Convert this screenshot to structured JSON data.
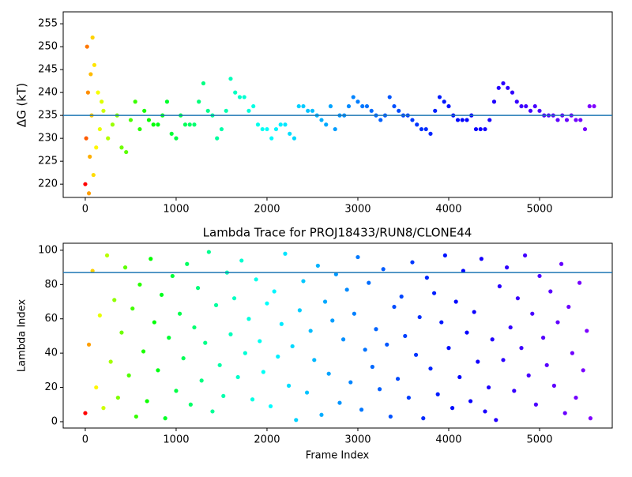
{
  "chart_data": [
    {
      "type": "scatter",
      "ylabel": "ΔG (kT)",
      "colormap": "rainbow",
      "x": [
        0,
        10,
        20,
        30,
        40,
        50,
        60,
        70,
        80,
        90,
        100,
        120,
        140,
        160,
        180,
        200,
        250,
        300,
        350,
        400,
        450,
        500,
        550,
        600,
        650,
        700,
        750,
        800,
        850,
        900,
        950,
        1000,
        1050,
        1100,
        1150,
        1200,
        1250,
        1300,
        1350,
        1400,
        1450,
        1500,
        1550,
        1600,
        1650,
        1700,
        1750,
        1800,
        1850,
        1900,
        1950,
        2000,
        2050,
        2100,
        2150,
        2200,
        2250,
        2300,
        2350,
        2400,
        2450,
        2500,
        2550,
        2600,
        2650,
        2700,
        2750,
        2800,
        2850,
        2900,
        2950,
        3000,
        3050,
        3100,
        3150,
        3200,
        3250,
        3300,
        3350,
        3400,
        3450,
        3500,
        3550,
        3600,
        3650,
        3700,
        3750,
        3800,
        3850,
        3900,
        3950,
        4000,
        4050,
        4100,
        4150,
        4200,
        4250,
        4300,
        4350,
        4400,
        4450,
        4500,
        4550,
        4600,
        4650,
        4700,
        4750,
        4800,
        4850,
        4900,
        4950,
        5000,
        5050,
        5100,
        5150,
        5200,
        5250,
        5300,
        5350,
        5400,
        5450,
        5500,
        5550,
        5600
      ],
      "values": [
        220,
        230,
        250,
        240,
        218,
        226,
        244,
        235,
        252,
        222,
        246,
        228,
        240,
        232,
        238,
        236,
        230,
        233,
        235,
        228,
        227,
        234,
        238,
        232,
        236,
        234,
        233,
        233,
        235,
        238,
        231,
        230,
        235,
        233,
        233,
        233,
        238,
        242,
        236,
        235,
        230,
        232,
        236,
        243,
        240,
        239,
        239,
        236,
        237,
        233,
        232,
        232,
        230,
        232,
        233,
        233,
        231,
        230,
        237,
        237,
        236,
        236,
        235,
        234,
        233,
        237,
        232,
        235,
        235,
        237,
        239,
        238,
        237,
        237,
        236,
        235,
        234,
        235,
        239,
        237,
        236,
        235,
        235,
        234,
        233,
        232,
        232,
        231,
        236,
        239,
        238,
        237,
        235,
        234,
        234,
        234,
        235,
        232,
        232,
        232,
        234,
        238,
        241,
        242,
        241,
        240,
        238,
        237,
        237,
        236,
        237,
        236,
        235,
        235,
        235,
        234,
        235,
        234,
        235,
        234,
        234,
        232,
        237,
        237
      ],
      "xlim": [
        -243,
        5800
      ],
      "ylim": [
        217.1,
        257.6
      ],
      "xticks": [
        0,
        1000,
        2000,
        3000,
        4000,
        5000
      ],
      "yticks": [
        220,
        225,
        230,
        235,
        240,
        245,
        250,
        255
      ],
      "hline": 235,
      "hline_color": "#1f77b4"
    },
    {
      "type": "scatter",
      "title": "Lambda Trace for PROJ18433/RUN8/CLONE44",
      "xlabel": "Frame Index",
      "ylabel": "Lambda Index",
      "colormap": "rainbow",
      "x": [
        0,
        40,
        80,
        120,
        160,
        200,
        240,
        280,
        320,
        360,
        400,
        440,
        480,
        520,
        560,
        600,
        640,
        680,
        720,
        760,
        800,
        840,
        880,
        920,
        960,
        1000,
        1040,
        1080,
        1120,
        1160,
        1200,
        1240,
        1280,
        1320,
        1360,
        1400,
        1440,
        1480,
        1520,
        1560,
        1600,
        1640,
        1680,
        1720,
        1760,
        1800,
        1840,
        1880,
        1920,
        1960,
        2000,
        2040,
        2080,
        2120,
        2160,
        2200,
        2240,
        2280,
        2320,
        2360,
        2400,
        2440,
        2480,
        2520,
        2560,
        2600,
        2640,
        2680,
        2720,
        2760,
        2800,
        2840,
        2880,
        2920,
        2960,
        3000,
        3040,
        3080,
        3120,
        3160,
        3200,
        3240,
        3280,
        3320,
        3360,
        3400,
        3440,
        3480,
        3520,
        3560,
        3600,
        3640,
        3680,
        3720,
        3760,
        3800,
        3840,
        3880,
        3920,
        3960,
        4000,
        4040,
        4080,
        4120,
        4160,
        4200,
        4240,
        4280,
        4320,
        4360,
        4400,
        4440,
        4480,
        4520,
        4560,
        4600,
        4640,
        4680,
        4720,
        4760,
        4800,
        4840,
        4880,
        4920,
        4960,
        5000,
        5040,
        5080,
        5120,
        5160,
        5200,
        5240,
        5280,
        5320,
        5360,
        5400,
        5440,
        5480,
        5520,
        5560
      ],
      "values": [
        5,
        45,
        88,
        20,
        62,
        8,
        97,
        35,
        71,
        14,
        52,
        90,
        27,
        66,
        3,
        80,
        41,
        12,
        95,
        58,
        30,
        74,
        2,
        49,
        85,
        18,
        63,
        37,
        92,
        10,
        55,
        78,
        24,
        46,
        99,
        6,
        68,
        33,
        15,
        87,
        51,
        72,
        26,
        94,
        40,
        60,
        13,
        83,
        47,
        29,
        69,
        9,
        76,
        38,
        57,
        98,
        21,
        44,
        1,
        65,
        82,
        17,
        53,
        36,
        91,
        4,
        70,
        28,
        59,
        86,
        11,
        48,
        77,
        23,
        63,
        96,
        7,
        42,
        81,
        32,
        54,
        19,
        89,
        45,
        3,
        67,
        25,
        73,
        50,
        14,
        93,
        39,
        61,
        2,
        84,
        31,
        75,
        16,
        58,
        97,
        43,
        8,
        70,
        26,
        88,
        52,
        12,
        64,
        35,
        95,
        6,
        20,
        48,
        1,
        79,
        36,
        90,
        55,
        18,
        72,
        43,
        97,
        27,
        63,
        10,
        85,
        49,
        33,
        76,
        21,
        58,
        92,
        5,
        67,
        40,
        14,
        81,
        30,
        53,
        2
      ],
      "xlim": [
        -243,
        5800
      ],
      "ylim": [
        -3.7,
        104.1
      ],
      "xticks": [
        0,
        1000,
        2000,
        3000,
        4000,
        5000
      ],
      "yticks": [
        0,
        20,
        40,
        60,
        80,
        100
      ],
      "hline": 87,
      "hline_color": "#1f77b4"
    }
  ]
}
